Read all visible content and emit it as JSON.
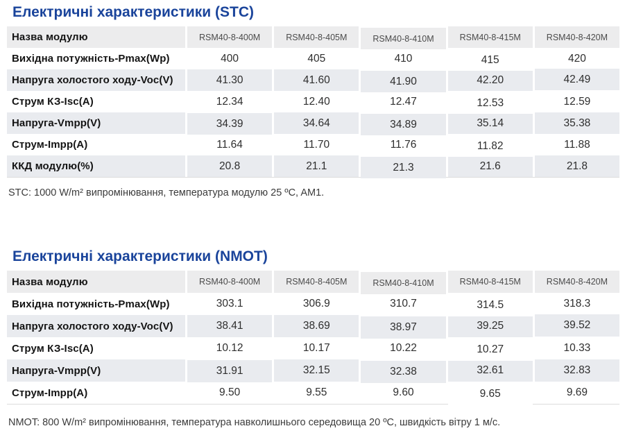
{
  "colors": {
    "title_blue": "#1a449b",
    "header_row_bg": "#ececed",
    "banded_row_bg": "#e9ebef",
    "label_text": "#141414",
    "value_text": "#2e2e2e"
  },
  "tables": [
    {
      "id": "stc",
      "title": "Електричні характеристики (STC)",
      "header_label": "Назва модулю",
      "columns": [
        "RSM40-8-400M",
        "RSM40-8-405M",
        "RSM40-8-410M",
        "RSM40-8-415M",
        "RSM40-8-420M"
      ],
      "rows": [
        {
          "label": "Вихідна потужність-Pmax(Wp)",
          "values": [
            "400",
            "405",
            "410",
            "415",
            "420"
          ]
        },
        {
          "label": "Напруга холостого ходу-Voc(V)",
          "values": [
            "41.30",
            "41.60",
            "41.90",
            "42.20",
            "42.49"
          ]
        },
        {
          "label": "Струм КЗ-Isc(A)",
          "values": [
            "12.34",
            "12.40",
            "12.47",
            "12.53",
            "12.59"
          ]
        },
        {
          "label": "Напруга-Vmpp(V)",
          "values": [
            "34.39",
            "34.64",
            "34.89",
            "35.14",
            "35.38"
          ]
        },
        {
          "label": "Струм-Impp(A)",
          "values": [
            "11.64",
            "11.70",
            "11.76",
            "11.82",
            "11.88"
          ]
        },
        {
          "label": "ККД модулю(%)",
          "values": [
            "20.8",
            "21.1",
            "21.3",
            "21.6",
            "21.8"
          ]
        }
      ],
      "footnote": "STC: 1000 W/m² випромінювання, температура модулю 25 ºC, AM1."
    },
    {
      "id": "nmot",
      "title": "Електричні характеристики (NMOT)",
      "header_label": "Назва модулю",
      "columns": [
        "RSM40-8-400M",
        "RSM40-8-405M",
        "RSM40-8-410M",
        "RSM40-8-415M",
        "RSM40-8-420M"
      ],
      "rows": [
        {
          "label": "Вихідна потужність-Pmax(Wp)",
          "values": [
            "303.1",
            "306.9",
            "310.7",
            "314.5",
            "318.3"
          ]
        },
        {
          "label": "Напруга холостого ходу-Voc(V)",
          "values": [
            "38.41",
            "38.69",
            "38.97",
            "39.25",
            "39.52"
          ]
        },
        {
          "label": "Струм КЗ-Isc(A)",
          "values": [
            "10.12",
            "10.17",
            "10.22",
            "10.27",
            "10.33"
          ]
        },
        {
          "label": "Напруга-Vmpp(V)",
          "values": [
            "31.91",
            "32.15",
            "32.38",
            "32.61",
            "32.83"
          ]
        },
        {
          "label": "Струм-Impp(A)",
          "values": [
            "9.50",
            "9.55",
            "9.60",
            "9.65",
            "9.69"
          ]
        }
      ],
      "footnote": "NMOT: 800 W/m² випромінювання, температура навколишнього середовища 20 ºC, швидкість вітру 1 м/с."
    }
  ]
}
